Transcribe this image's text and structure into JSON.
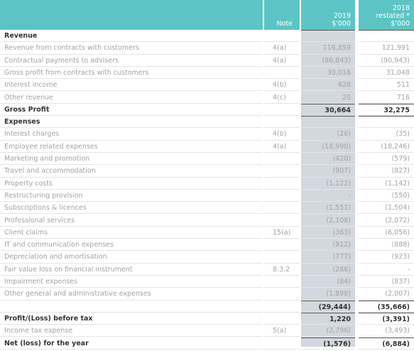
{
  "header": {
    "note": "Note",
    "col2019": [
      "2019",
      "$'000"
    ],
    "col2018": [
      "2018",
      "restated *",
      "$'000"
    ]
  },
  "rows": [
    {
      "label": "Revenue",
      "bold": true
    },
    {
      "label": "Revenue from contracts with customers",
      "note": "4(a)",
      "y2019": "116,859",
      "y2018": "121,991"
    },
    {
      "label": "Contractual payments to advisers",
      "note": "4(a)",
      "y2019": "(86,843)",
      "y2018": "(90,943)"
    },
    {
      "label": "Gross profit from contracts with customers",
      "y2019": "30,016",
      "y2018": "31,048"
    },
    {
      "label": "Interest income",
      "note": "4(b)",
      "y2019": "628",
      "y2018": "511"
    },
    {
      "label": "Other revenue",
      "note": "4(c)",
      "y2019": "20",
      "y2018": "716"
    },
    {
      "label": "Gross Profit",
      "y2019": "30,664",
      "y2018": "32,275",
      "bold": true
    },
    {
      "label": "Expenses",
      "bold": true
    },
    {
      "label": "Interest charges",
      "note": "4(b)",
      "y2019": "(26)",
      "y2018": "(35)"
    },
    {
      "label": "Employee related expenses",
      "note": "4(a)",
      "y2019": "(18,990)",
      "y2018": "(18,246)"
    },
    {
      "label": "Marketing and promotion",
      "y2019": "(420)",
      "y2018": "(579)"
    },
    {
      "label": "Travel and accommodation",
      "y2019": "(907)",
      "y2018": "(827)"
    },
    {
      "label": "Property costs",
      "y2019": "(1,122)",
      "y2018": "(1,142)"
    },
    {
      "label": "Restructuring provision",
      "y2019": "-",
      "y2018": "(550)"
    },
    {
      "label": "Subscriptions & licences",
      "y2019": "(1,551)",
      "y2018": "(1,504)"
    },
    {
      "label": "Professional services",
      "y2019": "(2,108)",
      "y2018": "(2,072)"
    },
    {
      "label": "Client claims",
      "note": "15(a)",
      "y2019": "(363)",
      "y2018": "(6,056)"
    },
    {
      "label": "IT and communication expenses",
      "y2019": "(912)",
      "y2018": "(888)"
    },
    {
      "label": "Depreciation and amortisation",
      "y2019": "(777)",
      "y2018": "(923)"
    },
    {
      "label": "Fair value loss on financial instrument",
      "note": "8.3.2",
      "y2019": "(286)",
      "y2018": "-"
    },
    {
      "label": "Impairment expenses",
      "y2019": "(84)",
      "y2018": "(837)"
    },
    {
      "label": "Other general and administrative expenses",
      "y2019": "(1,898)",
      "y2018": "(2,007)"
    },
    {
      "y2019": "(29,444)",
      "y2018": "(35,666)",
      "bold": true
    },
    {
      "label": "Profit/(Loss) before tax",
      "y2019": "1,220",
      "y2018": "(3,391)",
      "bold": true
    },
    {
      "label": "Income tax expense",
      "note": "5(a)",
      "y2019": "(2,796)",
      "y2018": "(3,493)"
    },
    {
      "label": "Net (loss) for the year",
      "y2019": "(1,576)",
      "y2018": "(6,884)",
      "bold": true
    }
  ]
}
